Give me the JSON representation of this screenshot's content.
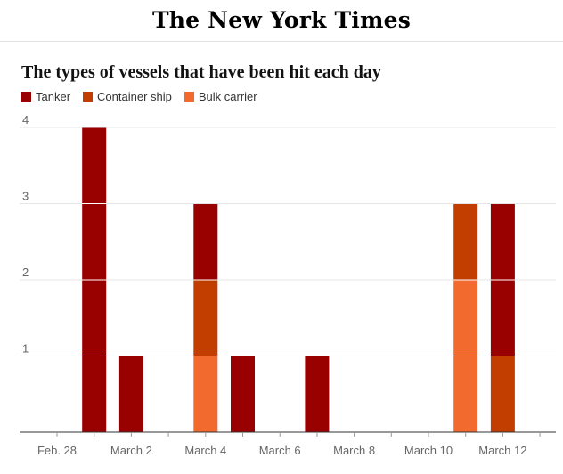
{
  "masthead": {
    "logo_text": "The New York Times"
  },
  "chart_data": {
    "type": "bar",
    "stacked": true,
    "title": "The types of vessels that have been hit each day",
    "xlabel": "",
    "ylabel": "",
    "ylim": [
      0,
      4
    ],
    "yticks": [
      1,
      2,
      3,
      4
    ],
    "grid": true,
    "legend_position": "top-left",
    "x": [
      "Feb. 28",
      "March 1",
      "March 2",
      "March 3",
      "March 4",
      "March 5",
      "March 6",
      "March 7",
      "March 8",
      "March 9",
      "March 10",
      "March 11",
      "March 12",
      "March 13"
    ],
    "x_tick_labels": [
      "Feb. 28",
      "March 2",
      "March 4",
      "March 6",
      "March 8",
      "March 10",
      "March 12"
    ],
    "series": [
      {
        "name": "Bulk carrier",
        "color": "#f26a2e",
        "values": [
          0,
          0,
          0,
          0,
          1,
          0,
          0,
          0,
          0,
          0,
          0,
          2,
          0,
          0
        ]
      },
      {
        "name": "Container ship",
        "color": "#c23e00",
        "values": [
          0,
          0,
          0,
          0,
          1,
          0,
          0,
          0,
          0,
          0,
          0,
          1,
          1,
          0
        ]
      },
      {
        "name": "Tanker",
        "color": "#990000",
        "values": [
          0,
          4,
          1,
          0,
          1,
          1,
          0,
          1,
          0,
          0,
          0,
          0,
          2,
          0
        ]
      }
    ],
    "legend_order": [
      "Tanker",
      "Container ship",
      "Bulk carrier"
    ]
  }
}
